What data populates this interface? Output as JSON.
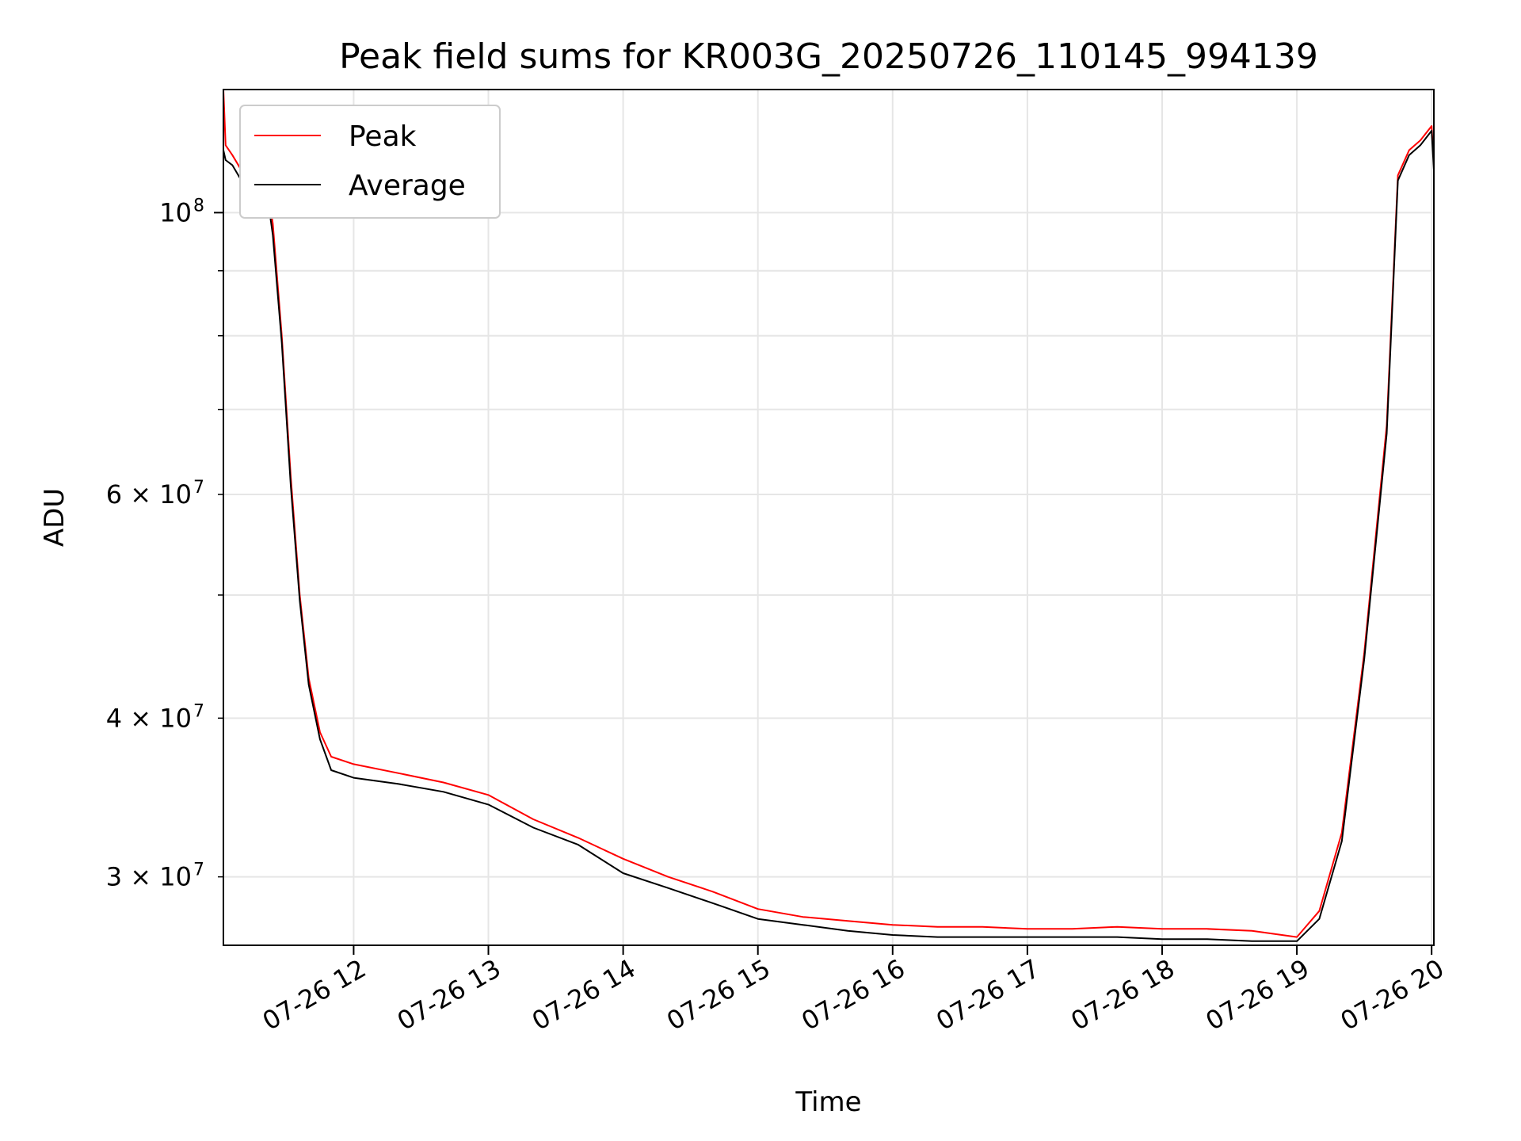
{
  "chart_data": {
    "type": "line",
    "title": "Peak field sums for KR003G_20250726_110145_994139",
    "xlabel": "Time",
    "ylabel": "ADU",
    "yscale": "log",
    "ylim": [
      26500000,
      125000000
    ],
    "xlim": [
      "2025-07-26 11:02",
      "2025-07-26 20:01"
    ],
    "grid": true,
    "legend": "top-left",
    "x_ticks": [
      {
        "value": "2025-07-26 12:00",
        "label": "07-26 12"
      },
      {
        "value": "2025-07-26 13:00",
        "label": "07-26 13"
      },
      {
        "value": "2025-07-26 14:00",
        "label": "07-26 14"
      },
      {
        "value": "2025-07-26 15:00",
        "label": "07-26 15"
      },
      {
        "value": "2025-07-26 16:00",
        "label": "07-26 16"
      },
      {
        "value": "2025-07-26 17:00",
        "label": "07-26 17"
      },
      {
        "value": "2025-07-26 18:00",
        "label": "07-26 18"
      },
      {
        "value": "2025-07-26 19:00",
        "label": "07-26 19"
      },
      {
        "value": "2025-07-26 20:00",
        "label": "07-26 20"
      }
    ],
    "y_ticks_major": [
      {
        "value": 100000000,
        "label": "10",
        "sup": "8"
      }
    ],
    "y_ticks_minor": [
      {
        "value": 30000000,
        "label": "3 × 10",
        "sup": "7"
      },
      {
        "value": 40000000,
        "label": "4 × 10",
        "sup": "7"
      },
      {
        "value": 60000000,
        "label": "6 × 10",
        "sup": "7"
      }
    ],
    "y_minor_unlabeled": [
      50000000,
      70000000,
      80000000,
      90000000
    ],
    "series": [
      {
        "name": "Peak",
        "color": "#ff0000",
        "x": [
          "2025-07-26 11:02",
          "2025-07-26 11:03",
          "2025-07-26 11:06",
          "2025-07-26 11:10",
          "2025-07-26 11:15",
          "2025-07-26 11:18",
          "2025-07-26 11:20",
          "2025-07-26 11:24",
          "2025-07-26 11:28",
          "2025-07-26 11:32",
          "2025-07-26 11:36",
          "2025-07-26 11:40",
          "2025-07-26 11:45",
          "2025-07-26 11:50",
          "2025-07-26 12:00",
          "2025-07-26 12:20",
          "2025-07-26 12:40",
          "2025-07-26 13:00",
          "2025-07-26 13:20",
          "2025-07-26 13:40",
          "2025-07-26 14:00",
          "2025-07-26 14:20",
          "2025-07-26 14:40",
          "2025-07-26 15:00",
          "2025-07-26 15:20",
          "2025-07-26 15:40",
          "2025-07-26 16:00",
          "2025-07-26 16:20",
          "2025-07-26 16:40",
          "2025-07-26 17:00",
          "2025-07-26 17:20",
          "2025-07-26 17:40",
          "2025-07-26 18:00",
          "2025-07-26 18:20",
          "2025-07-26 18:40",
          "2025-07-26 19:00",
          "2025-07-26 19:10",
          "2025-07-26 19:20",
          "2025-07-26 19:30",
          "2025-07-26 19:40",
          "2025-07-26 19:45",
          "2025-07-26 19:50",
          "2025-07-26 19:55",
          "2025-07-26 20:00",
          "2025-07-26 20:01"
        ],
        "values": [
          125000000,
          113000000,
          111000000,
          108000000,
          104000000,
          103000000,
          110000000,
          98000000,
          80000000,
          62000000,
          50000000,
          43000000,
          39000000,
          37300000,
          36800000,
          36200000,
          35600000,
          34800000,
          33300000,
          32200000,
          31000000,
          30000000,
          29200000,
          28300000,
          27900000,
          27700000,
          27500000,
          27400000,
          27400000,
          27300000,
          27300000,
          27400000,
          27300000,
          27300000,
          27200000,
          26900000,
          28200000,
          32500000,
          45000000,
          68000000,
          107000000,
          112000000,
          114000000,
          117000000,
          109000000
        ]
      },
      {
        "name": "Average",
        "color": "#000000",
        "x": [
          "2025-07-26 11:02",
          "2025-07-26 11:03",
          "2025-07-26 11:06",
          "2025-07-26 11:10",
          "2025-07-26 11:15",
          "2025-07-26 11:18",
          "2025-07-26 11:20",
          "2025-07-26 11:24",
          "2025-07-26 11:28",
          "2025-07-26 11:32",
          "2025-07-26 11:36",
          "2025-07-26 11:40",
          "2025-07-26 11:45",
          "2025-07-26 11:50",
          "2025-07-26 12:00",
          "2025-07-26 12:20",
          "2025-07-26 12:40",
          "2025-07-26 13:00",
          "2025-07-26 13:20",
          "2025-07-26 13:40",
          "2025-07-26 14:00",
          "2025-07-26 14:20",
          "2025-07-26 14:40",
          "2025-07-26 15:00",
          "2025-07-26 15:20",
          "2025-07-26 15:40",
          "2025-07-26 16:00",
          "2025-07-26 16:20",
          "2025-07-26 16:40",
          "2025-07-26 17:00",
          "2025-07-26 17:20",
          "2025-07-26 17:40",
          "2025-07-26 18:00",
          "2025-07-26 18:20",
          "2025-07-26 18:40",
          "2025-07-26 19:00",
          "2025-07-26 19:10",
          "2025-07-26 19:20",
          "2025-07-26 19:30",
          "2025-07-26 19:40",
          "2025-07-26 19:45",
          "2025-07-26 19:50",
          "2025-07-26 19:55",
          "2025-07-26 20:00",
          "2025-07-26 20:01"
        ],
        "values": [
          112000000,
          110000000,
          109000000,
          106000000,
          103000000,
          102000000,
          108000000,
          96000000,
          79000000,
          61000000,
          49500000,
          42500000,
          38500000,
          36400000,
          35900000,
          35500000,
          35000000,
          34200000,
          32800000,
          31800000,
          30200000,
          29400000,
          28600000,
          27800000,
          27500000,
          27200000,
          27000000,
          26900000,
          26900000,
          26900000,
          26900000,
          26900000,
          26800000,
          26800000,
          26700000,
          26700000,
          27800000,
          32000000,
          44500000,
          67000000,
          106000000,
          111000000,
          113000000,
          116000000,
          108000000
        ]
      }
    ]
  }
}
